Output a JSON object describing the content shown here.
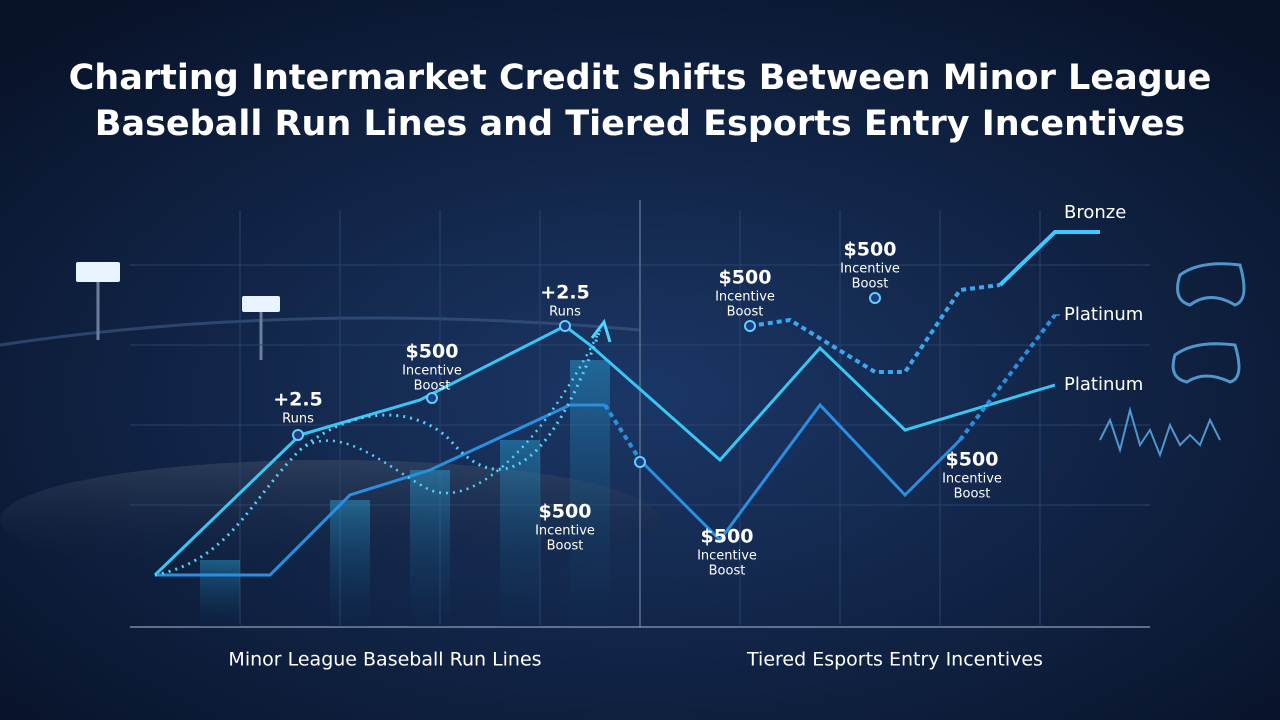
{
  "header": {
    "title_lines": [
      "Charting Intermarket Credit Shifts Between Minor League",
      "Baseball Run Lines and Tiered Esports Entry Incentives"
    ]
  },
  "annotations": [
    {
      "value": "+2.5",
      "lines": [
        "Runs"
      ]
    },
    {
      "value": "$500",
      "lines": [
        "Incentive",
        "Boost"
      ]
    },
    {
      "value": "+2.5",
      "lines": [
        "Runs"
      ]
    },
    {
      "value": "$500",
      "lines": [
        "Incentive",
        "Boost"
      ]
    },
    {
      "value": "$500",
      "lines": [
        "Incentive",
        "Boost"
      ]
    },
    {
      "value": "$500",
      "lines": [
        "Incentive",
        "Boost"
      ]
    },
    {
      "value": "$500",
      "lines": [
        "Incentive",
        "Boost"
      ]
    },
    {
      "value": "$500",
      "lines": [
        "Incentive",
        "Boost"
      ]
    }
  ],
  "tiers": [
    "Bronze",
    "Platinum",
    "Platinum"
  ],
  "panels": [
    "Minor League Baseball Run Lines",
    "Tiered Esports Entry Incentives"
  ]
}
